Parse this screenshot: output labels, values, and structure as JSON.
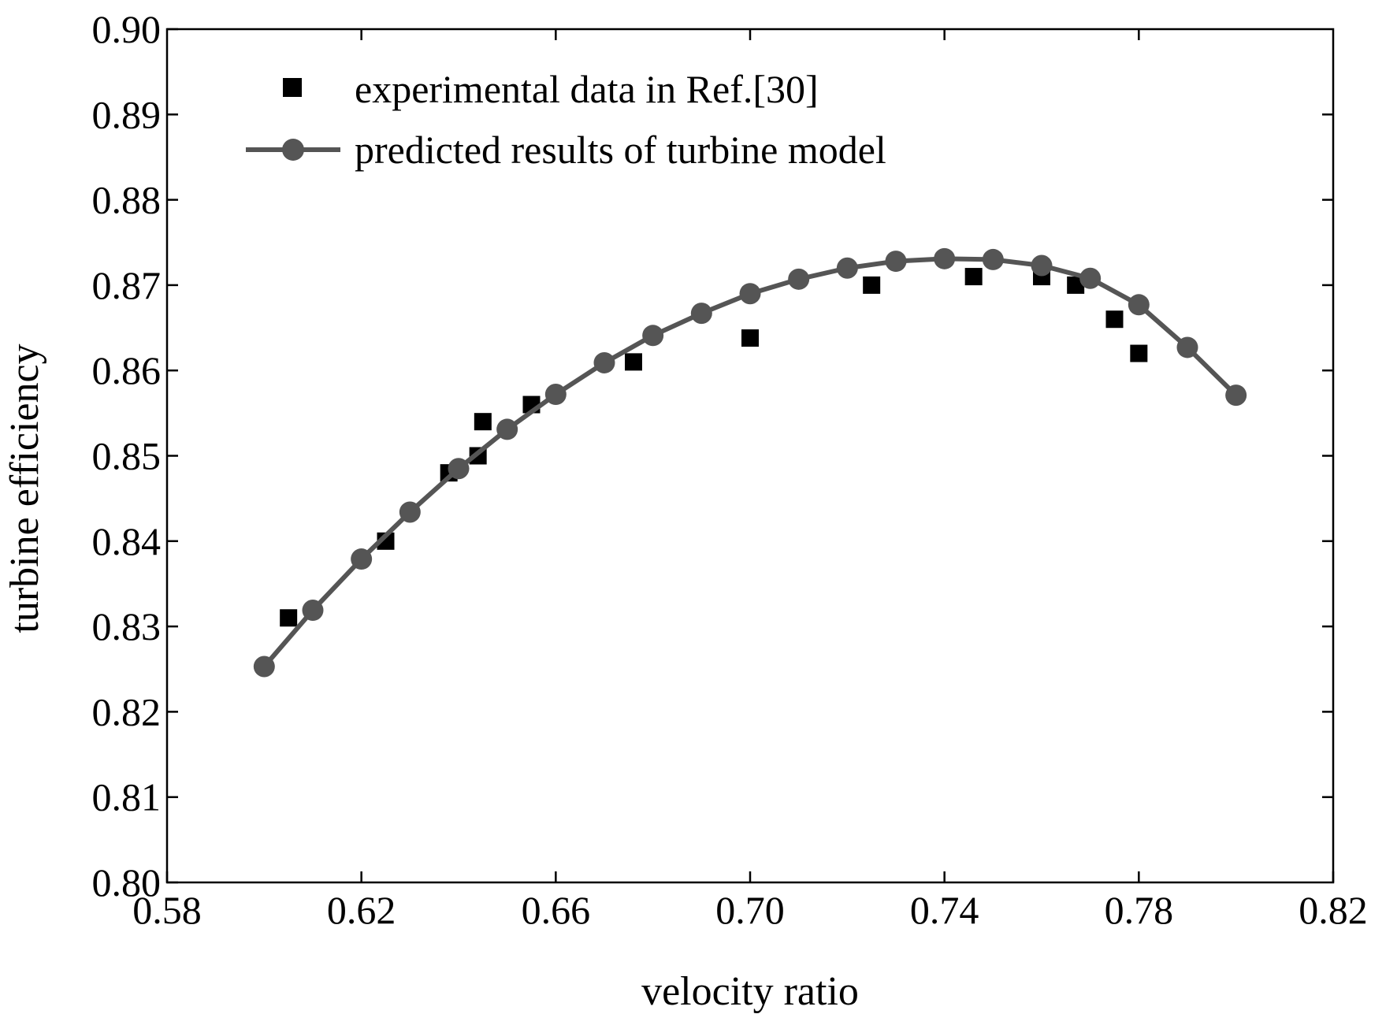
{
  "chart_data": {
    "type": "scatter",
    "title": "",
    "xlabel": "velocity ratio",
    "ylabel": "turbine efficiency",
    "xlim": [
      0.58,
      0.82
    ],
    "ylim": [
      0.8,
      0.9
    ],
    "x_ticks": [
      "0.58",
      "0.62",
      "0.66",
      "0.70",
      "0.74",
      "0.78",
      "0.82"
    ],
    "y_ticks": [
      "0.80",
      "0.81",
      "0.82",
      "0.83",
      "0.84",
      "0.85",
      "0.86",
      "0.87",
      "0.88",
      "0.89",
      "0.90"
    ],
    "grid": false,
    "legend_position": "top-left",
    "series": [
      {
        "name": "experimental data in Ref.[30]",
        "marker": "square",
        "line": false,
        "color": "#000000",
        "x": [
          0.605,
          0.625,
          0.638,
          0.644,
          0.645,
          0.655,
          0.676,
          0.7,
          0.725,
          0.746,
          0.76,
          0.767,
          0.775,
          0.78
        ],
        "y": [
          0.831,
          0.84,
          0.848,
          0.85,
          0.854,
          0.856,
          0.861,
          0.8638,
          0.87,
          0.871,
          0.871,
          0.87,
          0.866,
          0.862
        ]
      },
      {
        "name": "predicted results of turbine model",
        "marker": "circle",
        "line": true,
        "color": "#555555",
        "x": [
          0.6,
          0.61,
          0.62,
          0.63,
          0.64,
          0.65,
          0.66,
          0.67,
          0.68,
          0.69,
          0.7,
          0.71,
          0.72,
          0.73,
          0.74,
          0.75,
          0.76,
          0.77,
          0.78,
          0.79,
          0.8
        ],
        "y": [
          0.8253,
          0.8319,
          0.8379,
          0.8434,
          0.8485,
          0.8531,
          0.8572,
          0.8609,
          0.8641,
          0.8667,
          0.869,
          0.8707,
          0.872,
          0.8728,
          0.8731,
          0.873,
          0.8723,
          0.8708,
          0.8677,
          0.8627,
          0.8571
        ]
      }
    ]
  }
}
